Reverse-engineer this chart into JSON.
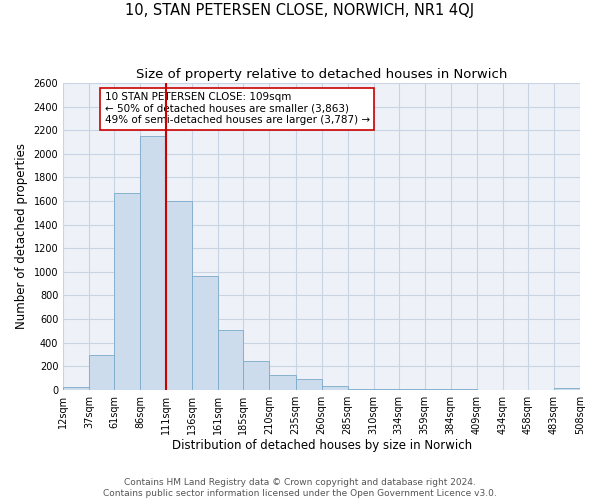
{
  "title": "10, STAN PETERSEN CLOSE, NORWICH, NR1 4QJ",
  "subtitle": "Size of property relative to detached houses in Norwich",
  "xlabel": "Distribution of detached houses by size in Norwich",
  "ylabel": "Number of detached properties",
  "bar_edges": [
    12,
    37,
    61,
    86,
    111,
    136,
    161,
    185,
    210,
    235,
    260,
    285,
    310,
    334,
    359,
    384,
    409,
    434,
    458,
    483,
    508
  ],
  "bar_heights": [
    20,
    295,
    1670,
    2150,
    1600,
    960,
    505,
    245,
    125,
    95,
    30,
    10,
    5,
    3,
    2,
    2,
    1,
    1,
    1,
    15
  ],
  "bar_color": "#ccdcec",
  "bar_edge_color": "#7aaaca",
  "grid_color": "#c8d4e4",
  "background_color": "#eef2f8",
  "vline_x": 111,
  "vline_color": "#cc0000",
  "annotation_line1": "10 STAN PETERSEN CLOSE: 109sqm",
  "annotation_line2": "← 50% of detached houses are smaller (3,863)",
  "annotation_line3": "49% of semi-detached houses are larger (3,787) →",
  "ylim": [
    0,
    2600
  ],
  "yticks": [
    0,
    200,
    400,
    600,
    800,
    1000,
    1200,
    1400,
    1600,
    1800,
    2000,
    2200,
    2400,
    2600
  ],
  "tick_labels": [
    "12sqm",
    "37sqm",
    "61sqm",
    "86sqm",
    "111sqm",
    "136sqm",
    "161sqm",
    "185sqm",
    "210sqm",
    "235sqm",
    "260sqm",
    "285sqm",
    "310sqm",
    "334sqm",
    "359sqm",
    "384sqm",
    "409sqm",
    "434sqm",
    "458sqm",
    "483sqm",
    "508sqm"
  ],
  "footer_line1": "Contains HM Land Registry data © Crown copyright and database right 2024.",
  "footer_line2": "Contains public sector information licensed under the Open Government Licence v3.0.",
  "title_fontsize": 10.5,
  "subtitle_fontsize": 9.5,
  "axis_label_fontsize": 8.5,
  "tick_fontsize": 7,
  "annotation_fontsize": 7.5,
  "footer_fontsize": 6.5
}
